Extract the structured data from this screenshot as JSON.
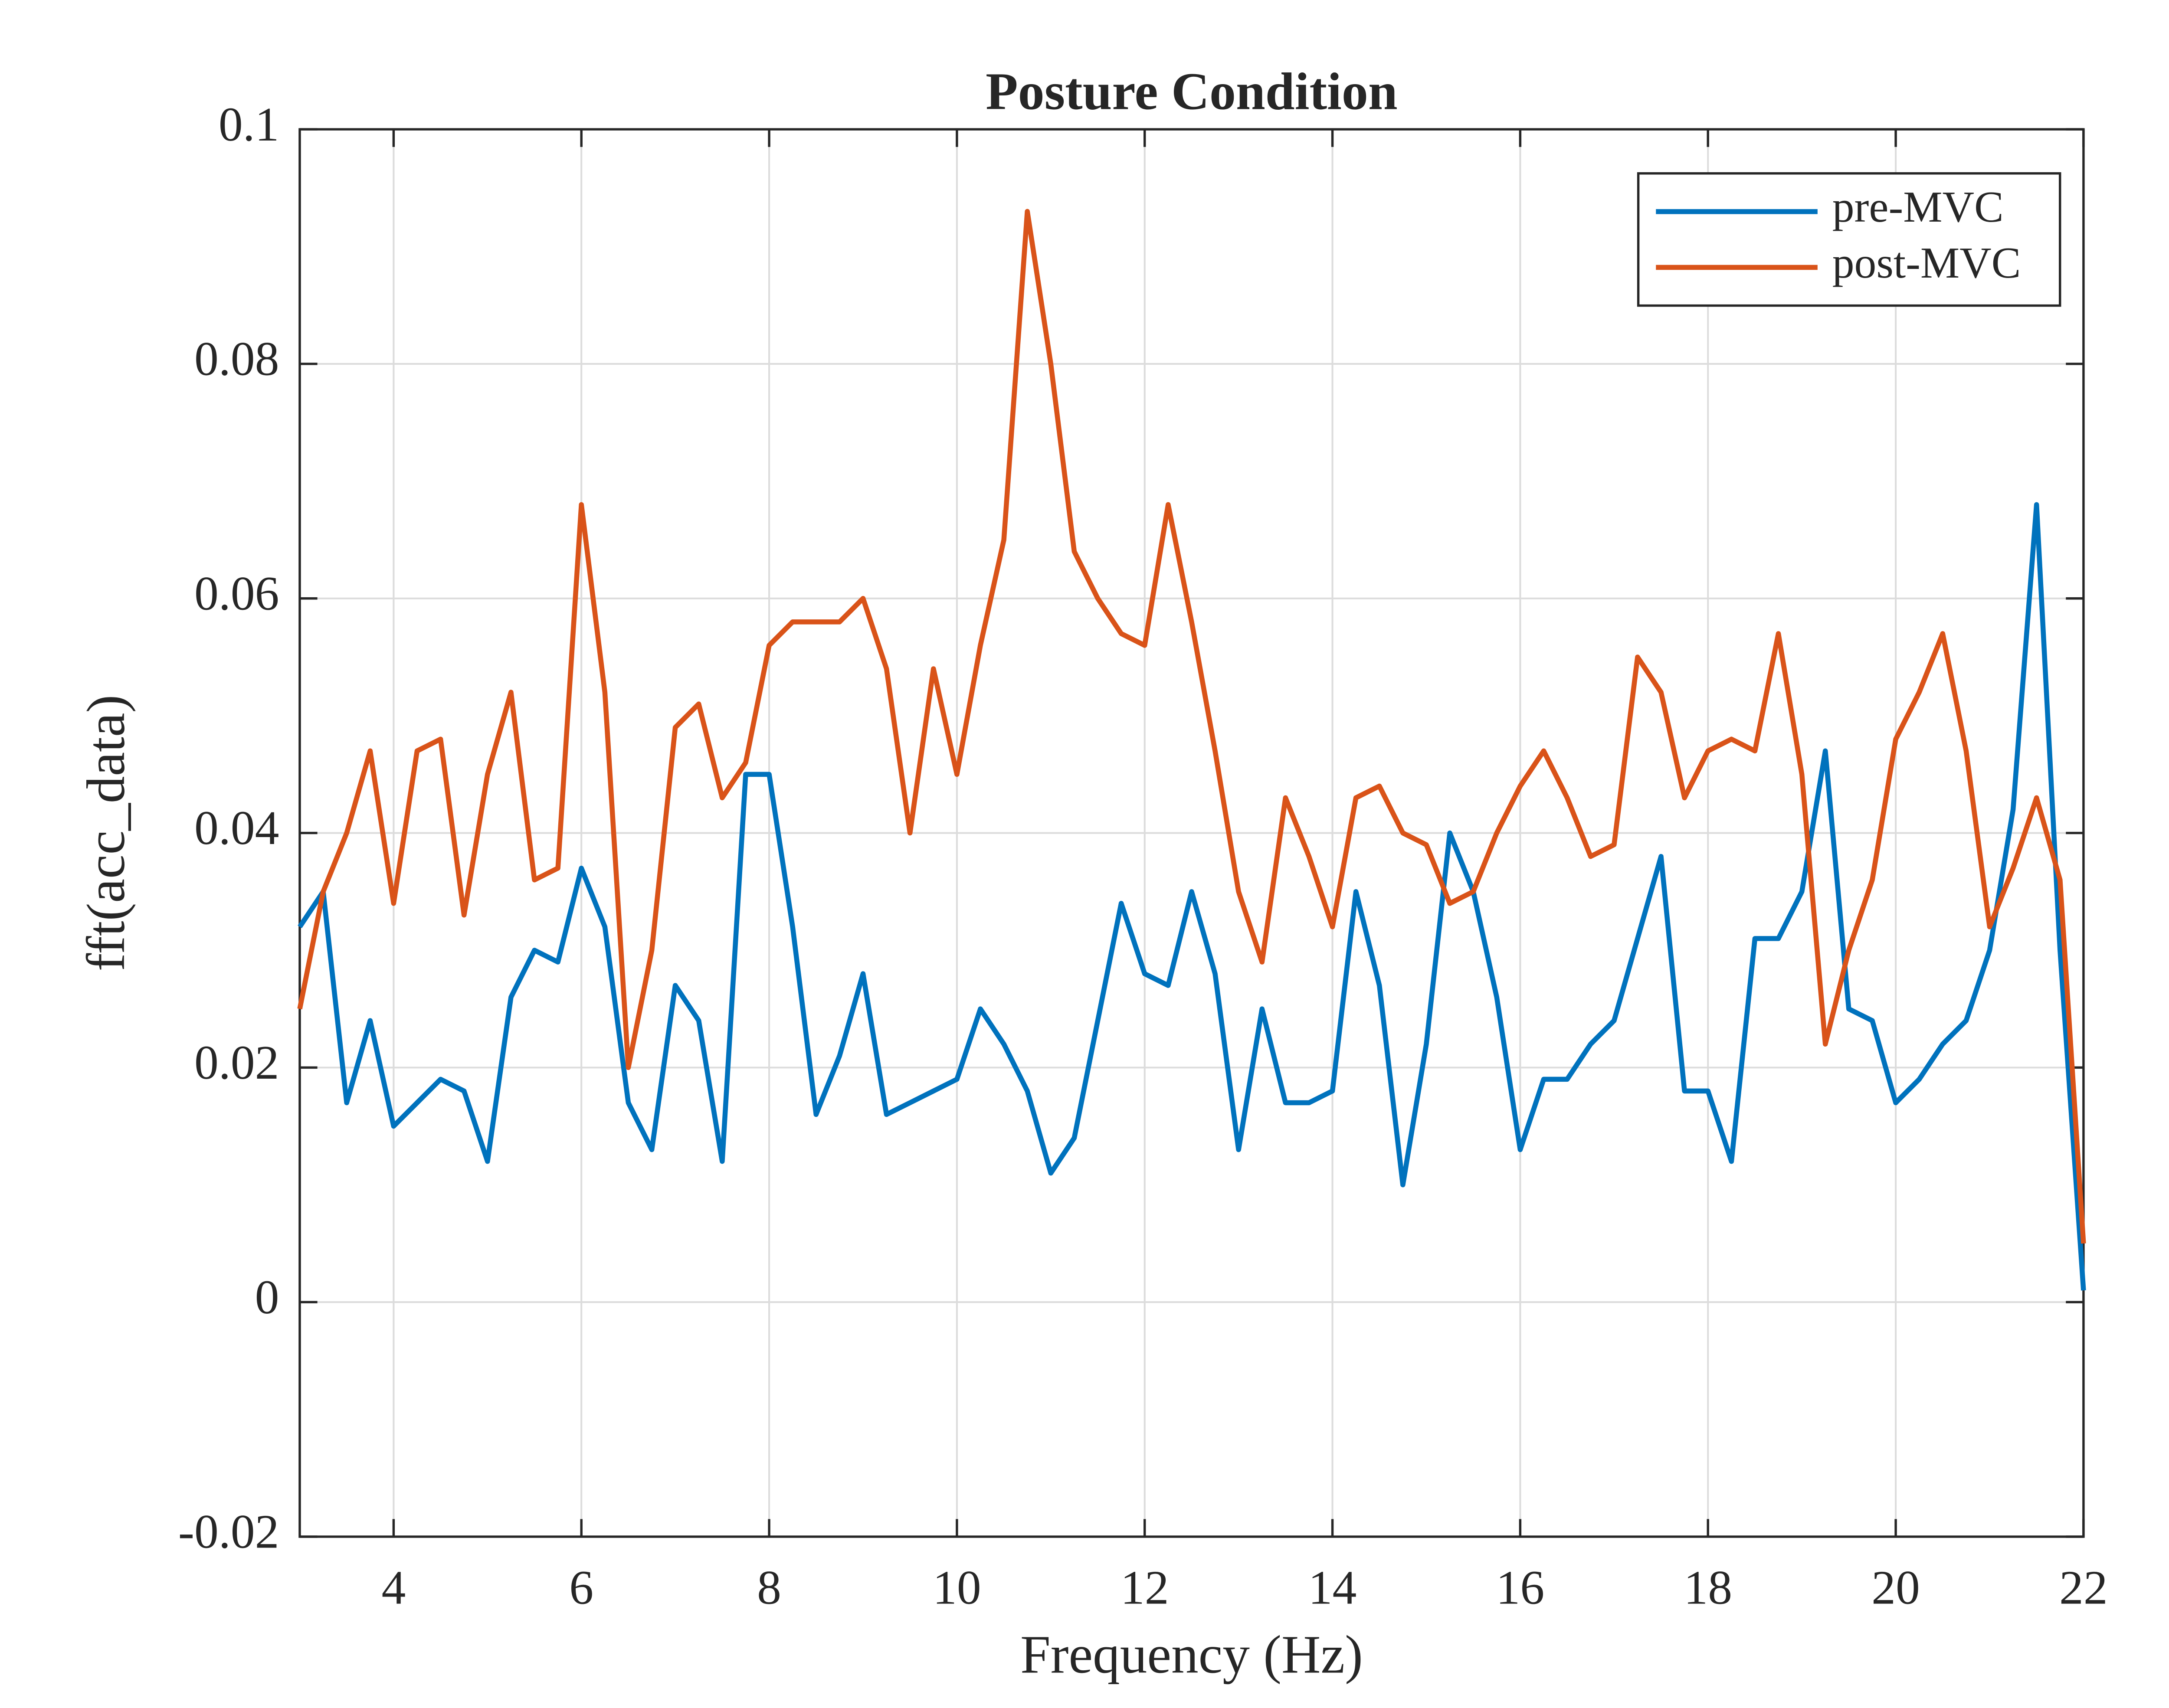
{
  "chart_data": {
    "type": "line",
    "title": "Posture Condition",
    "xlabel": "Frequency (Hz)",
    "ylabel": "fft(acc_data)",
    "x": [
      3.0,
      3.25,
      3.5,
      3.75,
      4.0,
      4.25,
      4.5,
      4.75,
      5.0,
      5.25,
      5.5,
      5.75,
      6.0,
      6.25,
      6.5,
      6.75,
      7.0,
      7.25,
      7.5,
      7.75,
      8.0,
      8.25,
      8.5,
      8.75,
      9.0,
      9.25,
      9.5,
      9.75,
      10.0,
      10.25,
      10.5,
      10.75,
      11.0,
      11.25,
      11.5,
      11.75,
      12.0,
      12.25,
      12.5,
      12.75,
      13.0,
      13.25,
      13.5,
      13.75,
      14.0,
      14.25,
      14.5,
      14.75,
      15.0,
      15.25,
      15.5,
      15.75,
      16.0,
      16.25,
      16.5,
      16.75,
      17.0,
      17.25,
      17.5,
      17.75,
      18.0,
      18.25,
      18.5,
      18.75,
      19.0,
      19.25,
      19.5,
      19.75,
      20.0,
      20.25,
      20.5,
      20.75,
      21.0,
      21.25,
      21.5,
      21.75,
      22.0
    ],
    "series": [
      {
        "name": "pre-MVC",
        "color": "#0072bd",
        "values": [
          0.032,
          0.035,
          0.017,
          0.024,
          0.015,
          0.017,
          0.019,
          0.018,
          0.012,
          0.026,
          0.03,
          0.029,
          0.037,
          0.032,
          0.017,
          0.013,
          0.027,
          0.024,
          0.012,
          0.045,
          0.045,
          0.032,
          0.016,
          0.021,
          0.028,
          0.016,
          0.017,
          0.018,
          0.019,
          0.025,
          0.022,
          0.018,
          0.011,
          0.014,
          0.024,
          0.034,
          0.028,
          0.027,
          0.035,
          0.028,
          0.013,
          0.025,
          0.017,
          0.017,
          0.018,
          0.035,
          0.027,
          0.01,
          0.022,
          0.04,
          0.035,
          0.026,
          0.013,
          0.019,
          0.019,
          0.022,
          0.024,
          0.031,
          0.038,
          0.018,
          0.018,
          0.012,
          0.031,
          0.031,
          0.035,
          0.047,
          0.025,
          0.024,
          0.017,
          0.019,
          0.022,
          0.024,
          0.03,
          0.042,
          0.068,
          0.03,
          0.001
        ]
      },
      {
        "name": "post-MVC",
        "color": "#d95319",
        "values": [
          0.025,
          0.035,
          0.04,
          0.047,
          0.034,
          0.047,
          0.048,
          0.033,
          0.045,
          0.052,
          0.036,
          0.037,
          0.068,
          0.052,
          0.02,
          0.03,
          0.049,
          0.051,
          0.043,
          0.046,
          0.056,
          0.058,
          0.058,
          0.058,
          0.06,
          0.054,
          0.04,
          0.054,
          0.045,
          0.056,
          0.065,
          0.093,
          0.08,
          0.064,
          0.06,
          0.057,
          0.056,
          0.068,
          0.058,
          0.047,
          0.035,
          0.029,
          0.043,
          0.038,
          0.032,
          0.043,
          0.044,
          0.04,
          0.039,
          0.034,
          0.035,
          0.04,
          0.044,
          0.047,
          0.043,
          0.038,
          0.039,
          0.055,
          0.052,
          0.043,
          0.047,
          0.048,
          0.047,
          0.057,
          0.045,
          0.022,
          0.03,
          0.036,
          0.048,
          0.052,
          0.057,
          0.047,
          0.032,
          0.037,
          0.043,
          0.036,
          0.005
        ]
      }
    ],
    "xlim": [
      3,
      22
    ],
    "xticks": [
      4,
      6,
      8,
      10,
      12,
      14,
      16,
      18,
      20,
      22
    ],
    "ylim": [
      -0.02,
      0.1
    ],
    "yticks": [
      -0.02,
      0,
      0.02,
      0.04,
      0.06,
      0.08,
      0.1
    ],
    "grid": true,
    "legend_position": "upper-right"
  }
}
